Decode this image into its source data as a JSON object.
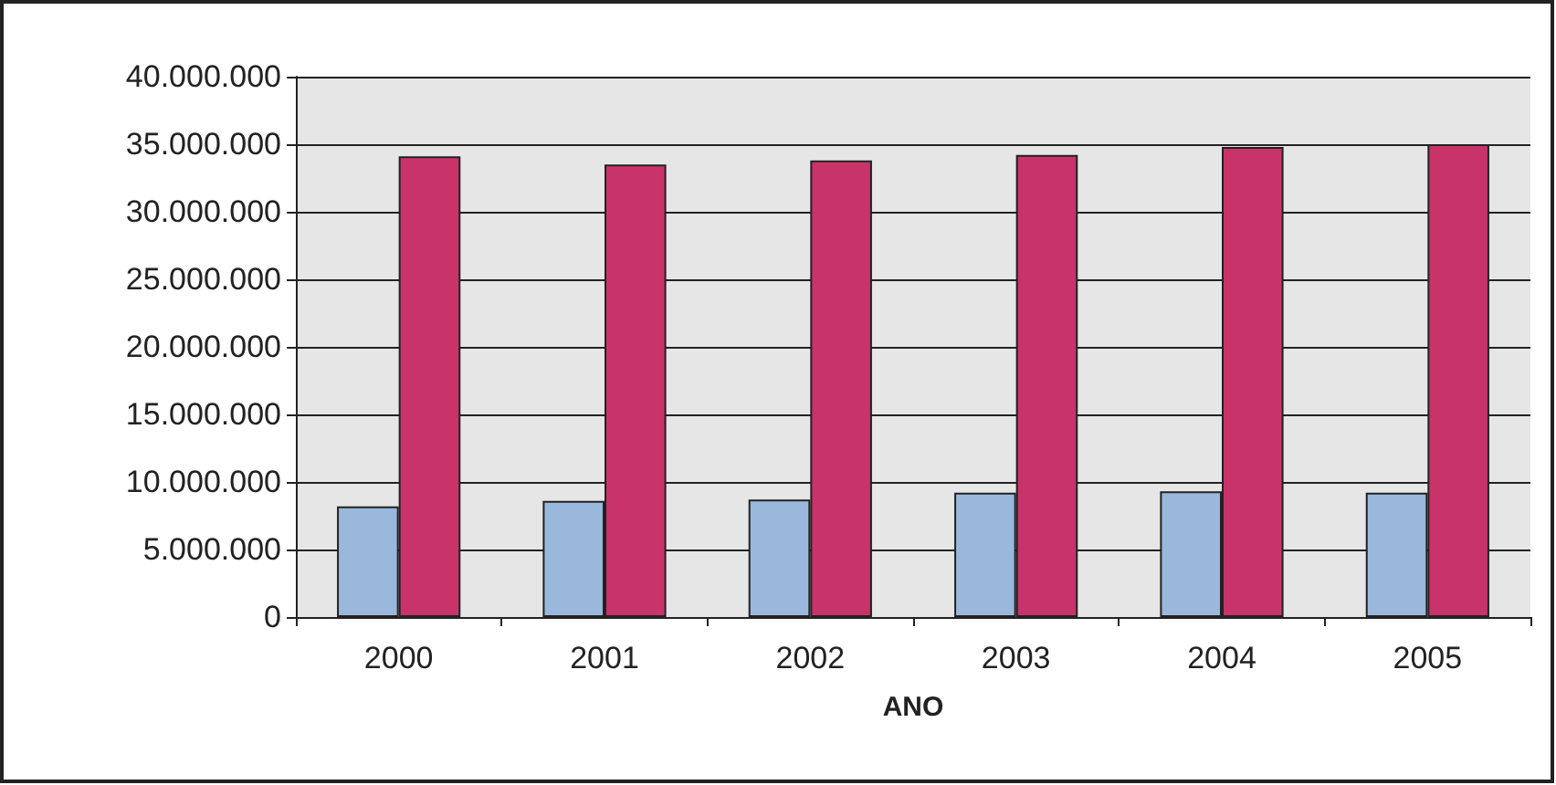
{
  "chart_data": {
    "type": "bar",
    "xlabel": "ANO",
    "categories": [
      "2000",
      "2001",
      "2002",
      "2003",
      "2004",
      "2005"
    ],
    "series": [
      {
        "color": "#9ab8dc",
        "values": [
          8200000,
          8600000,
          8700000,
          9200000,
          9300000,
          9200000
        ]
      },
      {
        "color": "#c8336a",
        "values": [
          34100000,
          33500000,
          33800000,
          34200000,
          34800000,
          35000000
        ]
      }
    ],
    "ylim": [
      0,
      40000000
    ],
    "yticks": [
      0,
      {
        "value": 5000000,
        "label": "5.000.000"
      },
      {
        "value": 10000000,
        "label": "10.000.000"
      },
      {
        "value": 15000000,
        "label": "15.000.000"
      },
      {
        "value": 20000000,
        "label": "20.000.000"
      },
      {
        "value": 25000000,
        "label": "25.000.000"
      },
      {
        "value": 30000000,
        "label": "30.000.000"
      },
      {
        "value": 35000000,
        "label": "35.000.000"
      },
      {
        "value": 40000000,
        "label": "40.000.000"
      }
    ],
    "grid": "y"
  }
}
